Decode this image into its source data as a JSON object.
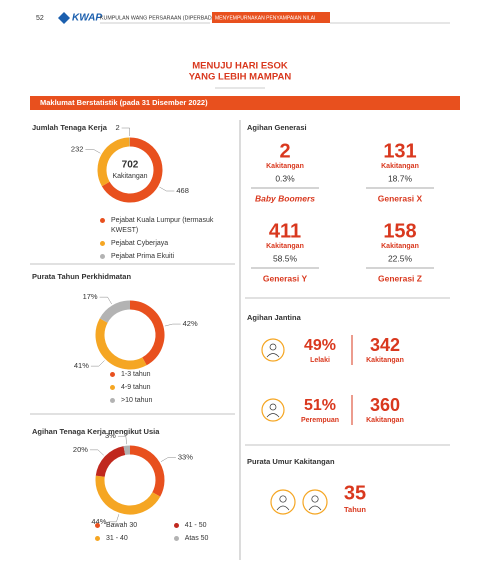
{
  "header": {
    "page": "52",
    "logo": "KWAP",
    "organisation": "KUMPULAN WANG PERSARAAN (DIPERBADANKAN)",
    "tag": "MENYEMPURNAKAN PENYAMPAIAN NILAI"
  },
  "title": [
    "MENUJU HARI ESOK",
    "YANG LEBIH MAMPAN"
  ],
  "banner": "Maklumat Berstatistik (pada 31 Disember 2022)",
  "chart_data": [
    {
      "type": "pie",
      "title": "Jumlah Tenaga Kerja",
      "center_value": 702,
      "center_label": "Kakitangan",
      "categories": [
        "Pejabat Kuala Lumpur (termasuk KWEST)",
        "Pejabat Cyberjaya",
        "Pejabat Prima Ekuiti"
      ],
      "values": [
        468,
        232,
        2
      ],
      "colors": [
        "#e8501e",
        "#f5a623",
        "#b3b3b3"
      ]
    },
    {
      "type": "pie",
      "title": "Purata Tahun Perkhidmatan",
      "categories": [
        "1-3 tahun",
        "4-9 tahun",
        ">10 tahun"
      ],
      "values": [
        42,
        41,
        17
      ],
      "value_labels": [
        "42%",
        "41%",
        "17%"
      ],
      "colors": [
        "#e8501e",
        "#f5a623",
        "#b3b3b3"
      ]
    },
    {
      "type": "pie",
      "title": "Agihan Tenaga Kerja mengikut Usia",
      "categories": [
        "Bawah 30",
        "31 - 40",
        "41 - 50",
        "Atas 50"
      ],
      "values": [
        33,
        44,
        20,
        3
      ],
      "value_labels": [
        "33%",
        "44%",
        "20%",
        "3%"
      ],
      "colors": [
        "#e8501e",
        "#f5a623",
        "#c0281e",
        "#b3b3b3"
      ]
    }
  ],
  "generations": {
    "title": "Agihan Generasi",
    "items": [
      {
        "count": 2,
        "unit": "Kakitangan",
        "share": "0.3%",
        "name": "Baby Boomers"
      },
      {
        "count": 131,
        "unit": "Kakitangan",
        "share": "18.7%",
        "name": "Generasi X"
      },
      {
        "count": 411,
        "unit": "Kakitangan",
        "share": "58.5%",
        "name": "Generasi Y"
      },
      {
        "count": 158,
        "unit": "Kakitangan",
        "share": "22.5%",
        "name": "Generasi Z"
      }
    ]
  },
  "gender": {
    "title": "Agihan Jantina",
    "items": [
      {
        "share": "49%",
        "label": "Lelaki",
        "count": 342,
        "unit": "Kakitangan"
      },
      {
        "share": "51%",
        "label": "Perempuan",
        "count": 360,
        "unit": "Kakitangan"
      }
    ]
  },
  "average_age": {
    "title": "Purata Umur Kakitangan",
    "value": 35,
    "unit": "Tahun"
  }
}
